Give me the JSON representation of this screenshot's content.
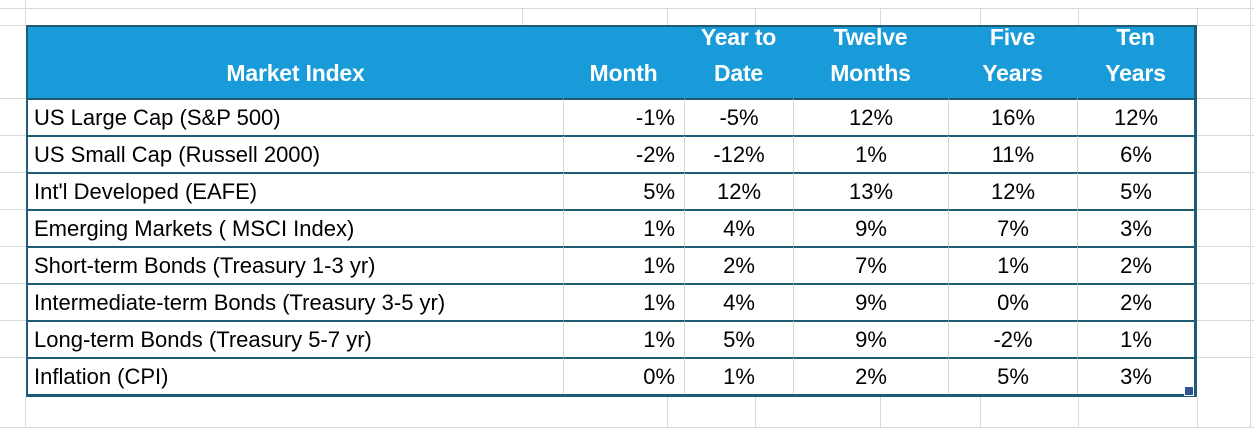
{
  "app": {
    "type": "spreadsheet",
    "colors": {
      "header_fill": "#189BD8",
      "header_text": "#ffffff",
      "table_border": "#1E5B74",
      "gridline": "#d9d9d9",
      "fill_handle": "#2F5597"
    }
  },
  "table": {
    "header": {
      "market_index": "Market Index",
      "month": "Month",
      "year_to_date": "Year to\nDate",
      "twelve_months": "Twelve\nMonths",
      "five_years": "Five\nYears",
      "ten_years": "Ten\nYears"
    },
    "rows": [
      {
        "label": "US Large Cap (S&P 500)",
        "values": [
          "-1%",
          "-5%",
          "12%",
          "16%",
          "12%"
        ]
      },
      {
        "label": "US Small Cap (Russell 2000)",
        "values": [
          "-2%",
          "-12%",
          "1%",
          "11%",
          "6%"
        ]
      },
      {
        "label": "Int'l Developed (EAFE)",
        "values": [
          "5%",
          "12%",
          "13%",
          "12%",
          "5%"
        ]
      },
      {
        "label": "Emerging Markets ( MSCI Index)",
        "values": [
          "1%",
          "4%",
          "9%",
          "7%",
          "3%"
        ]
      },
      {
        "label": "Short-term Bonds (Treasury 1-3 yr)",
        "values": [
          "1%",
          "2%",
          "7%",
          "1%",
          "2%"
        ]
      },
      {
        "label": "Intermediate-term Bonds (Treasury 3-5 yr)",
        "values": [
          "1%",
          "4%",
          "9%",
          "0%",
          "2%"
        ]
      },
      {
        "label": "Long-term Bonds (Treasury 5-7 yr)",
        "values": [
          "1%",
          "5%",
          "9%",
          "-2%",
          "1%"
        ]
      },
      {
        "label": "Inflation (CPI)",
        "values": [
          "0%",
          "1%",
          "2%",
          "5%",
          "3%"
        ]
      }
    ]
  }
}
